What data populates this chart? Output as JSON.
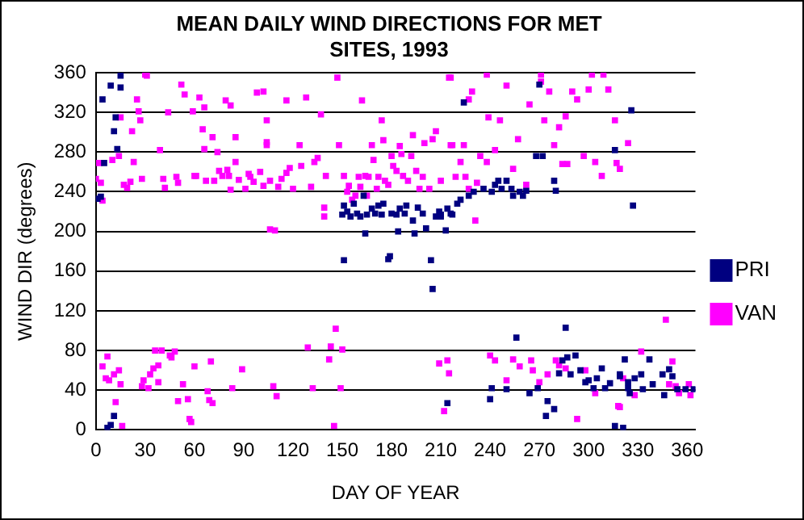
{
  "chart_data": {
    "type": "scatter",
    "title": "MEAN DAILY WIND DIRECTIONS FOR MET SITES, 1993",
    "xlabel": "DAY OF YEAR",
    "ylabel": "WIND DIR (degrees)",
    "xlim": [
      0,
      365
    ],
    "xticks": [
      0,
      30,
      60,
      90,
      120,
      150,
      180,
      210,
      240,
      270,
      300,
      330,
      360
    ],
    "ylim": [
      0,
      360
    ],
    "yticks": [
      0,
      40,
      80,
      120,
      160,
      200,
      240,
      280,
      320,
      360
    ],
    "grid": "y",
    "legend": "right",
    "marker": "square",
    "series": [
      {
        "name": "PRI",
        "color": "#000080",
        "x": [
          1,
          3,
          5,
          7,
          9,
          9,
          4,
          11,
          12,
          13,
          15,
          15,
          11,
          150,
          151,
          151,
          153,
          155,
          157,
          159,
          161,
          163,
          164,
          165,
          168,
          170,
          172,
          174,
          175,
          178,
          179,
          180,
          183,
          184,
          185,
          188,
          189,
          193,
          194,
          196,
          199,
          201,
          204,
          205,
          207,
          209,
          210,
          214,
          216,
          210,
          213,
          214,
          217,
          220,
          222,
          224,
          227,
          230,
          236,
          241,
          243,
          245,
          247,
          250,
          253,
          254,
          258,
          260,
          262,
          268,
          272,
          270,
          279,
          280,
          286,
          256,
          241,
          240,
          250,
          264,
          269,
          275,
          274,
          279,
          282,
          284,
          287,
          289,
          292,
          295,
          298,
          300,
          303,
          305,
          308,
          310,
          313,
          316,
          319,
          321,
          324,
          325,
          327,
          326,
          316,
          322,
          337,
          332,
          328,
          345,
          349,
          351,
          339,
          333,
          346,
          354,
          359,
          364,
          319,
          324
        ],
        "values": [
          233,
          235,
          269,
          2,
          5,
          347,
          333,
          301,
          315,
          283,
          357,
          345,
          14,
          217,
          226,
          171,
          220,
          215,
          228,
          218,
          215,
          236,
          198,
          217,
          223,
          218,
          226,
          217,
          228,
          172,
          175,
          218,
          217,
          200,
          223,
          218,
          226,
          211,
          198,
          224,
          218,
          203,
          171,
          142,
          215,
          220,
          217,
          27,
          218,
          215,
          201,
          223,
          217,
          228,
          232,
          330,
          236,
          240,
          243,
          240,
          247,
          251,
          243,
          251,
          243,
          236,
          240,
          236,
          241,
          276,
          276,
          348,
          251,
          241,
          103,
          93,
          42,
          31,
          41,
          37,
          42,
          29,
          14,
          21,
          57,
          70,
          73,
          56,
          75,
          60,
          48,
          50,
          42,
          52,
          62,
          42,
          47,
          4,
          56,
          2,
          42,
          37,
          226,
          322,
          282,
          71,
          71,
          56,
          52,
          56,
          61,
          54,
          46,
          41,
          35,
          41,
          41,
          41,
          54,
          48
        ]
      },
      {
        "name": "VAN",
        "color": "#ff00ff",
        "x": [
          0,
          2,
          3,
          4,
          4,
          6,
          7,
          8,
          11,
          12,
          14,
          15,
          16,
          10,
          14,
          15,
          17,
          19,
          21,
          22,
          23,
          25,
          26,
          27,
          28,
          30,
          31,
          28,
          29,
          32,
          33,
          35,
          36,
          38,
          38,
          39,
          40,
          41,
          42,
          44,
          45,
          46,
          48,
          49,
          50,
          50,
          52,
          53,
          54,
          56,
          57,
          58,
          59,
          60,
          60,
          61,
          63,
          65,
          66,
          66,
          67,
          68,
          69,
          70,
          71,
          71,
          72,
          74,
          75,
          77,
          79,
          80,
          81,
          82,
          82,
          83,
          85,
          85,
          87,
          89,
          91,
          93,
          94,
          96,
          98,
          100,
          102,
          104,
          106,
          102,
          104,
          104,
          109,
          108,
          110,
          106,
          111,
          113,
          116,
          116,
          118,
          120,
          124,
          125,
          128,
          129,
          131,
          132,
          133,
          135,
          137,
          139,
          139,
          140,
          142,
          143,
          145,
          146,
          147,
          148,
          149,
          150,
          151,
          153,
          154,
          156,
          158,
          160,
          161,
          162,
          164,
          165,
          166,
          168,
          169,
          171,
          172,
          174,
          175,
          176,
          178,
          180,
          181,
          183,
          185,
          186,
          187,
          190,
          192,
          193,
          195,
          197,
          199,
          200,
          203,
          205,
          207,
          209,
          212,
          215,
          216,
          216,
          238,
          271,
          302,
          309,
          229,
          227,
          250,
          239,
          246,
          224,
          217,
          222,
          219,
          210,
          225,
          227,
          232,
          234,
          238,
          243,
          254,
          257,
          262,
          264,
          271,
          276,
          273,
          279,
          282,
          286,
          284,
          287,
          290,
          293,
          297,
          300,
          304,
          308,
          312,
          316,
          317,
          319,
          324,
          231,
          240,
          214,
          215,
          243,
          250,
          254,
          258,
          265,
          266,
          270,
          275,
          280,
          282,
          286,
          293,
          298,
          304,
          318,
          321,
          347,
          332,
          351,
          328,
          349,
          353,
          355,
          361,
          362,
          319
        ],
        "values": [
          253,
          269,
          249,
          231,
          64,
          52,
          74,
          50,
          56,
          28,
          60,
          46,
          4,
          272,
          276,
          315,
          247,
          244,
          250,
          301,
          270,
          333,
          321,
          312,
          253,
          358,
          357,
          44,
          50,
          42,
          56,
          62,
          80,
          65,
          48,
          282,
          80,
          253,
          244,
          320,
          75,
          73,
          79,
          255,
          249,
          29,
          348,
          46,
          338,
          31,
          11,
          8,
          321,
          64,
          256,
          256,
          335,
          303,
          325,
          283,
          251,
          39,
          30,
          69,
          27,
          295,
          251,
          280,
          261,
          256,
          332,
          262,
          256,
          242,
          327,
          42,
          295,
          270,
          252,
          61,
          243,
          258,
          255,
          250,
          340,
          260,
          246,
          290,
          202,
          341,
          312,
          287,
          201,
          44,
          34,
          251,
          245,
          253,
          332,
          259,
          264,
          243,
          287,
          266,
          335,
          83,
          245,
          42,
          270,
          274,
          318,
          224,
          215,
          256,
          71,
          84,
          4,
          102,
          355,
          287,
          42,
          81,
          256,
          240,
          246,
          232,
          236,
          255,
          245,
          332,
          256,
          236,
          255,
          287,
          272,
          243,
          255,
          312,
          292,
          251,
          247,
          276,
          266,
          261,
          286,
          278,
          256,
          251,
          276,
          297,
          261,
          243,
          255,
          289,
          243,
          293,
          301,
          67,
          19,
          355,
          287,
          355,
          358,
          358,
          358,
          358,
          341,
          333,
          347,
          315,
          312,
          287,
          287,
          270,
          255,
          251,
          255,
          243,
          249,
          276,
          270,
          282,
          263,
          293,
          247,
          328,
          351,
          341,
          312,
          287,
          305,
          316,
          268,
          268,
          341,
          333,
          276,
          343,
          270,
          256,
          343,
          312,
          269,
          263,
          289,
          211,
          75,
          70,
          57,
          70,
          50,
          71,
          64,
          70,
          60,
          48,
          56,
          70,
          65,
          62,
          11,
          60,
          37,
          24,
          52,
          111,
          79,
          69,
          35,
          46,
          44,
          37,
          46,
          35,
          23
        ]
      }
    ]
  }
}
